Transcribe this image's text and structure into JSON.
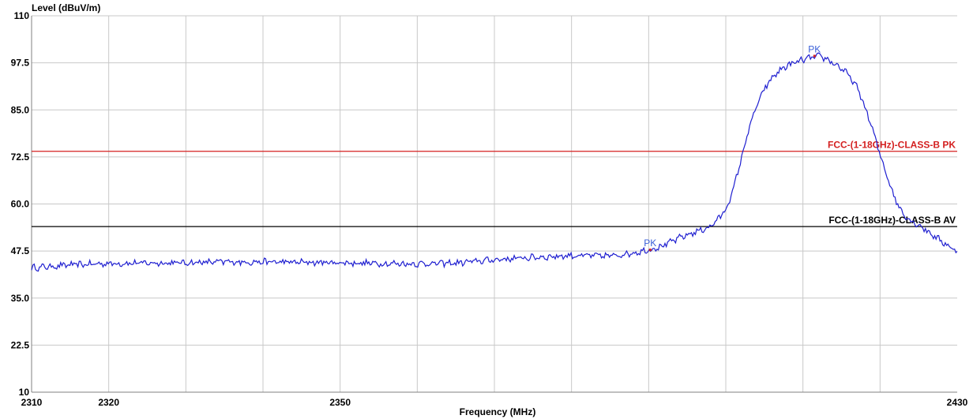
{
  "chart_data": {
    "type": "line",
    "ylabel": "Level (dBuV/m)",
    "xlabel": "Frequency (MHz)",
    "xlim": [
      2310,
      2430
    ],
    "ylim": [
      10,
      110
    ],
    "y_ticks": [
      "110",
      "97.5",
      "85.0",
      "72.5",
      "60.0",
      "47.5",
      "35.0",
      "22.5",
      "10"
    ],
    "x_ticks": [
      "2310",
      "2320",
      "2350",
      "2430"
    ],
    "grid": true,
    "series": [
      {
        "color": "#1f1fd0",
        "x": [
          2310,
          2315,
          2320,
          2325,
          2330,
          2335,
          2340,
          2345,
          2350,
          2355,
          2360,
          2365,
          2370,
          2375,
          2380,
          2385,
          2388,
          2390,
          2392,
          2394,
          2396,
          2398,
          2399,
          2400,
          2401,
          2402,
          2403,
          2404,
          2405,
          2406,
          2407,
          2408,
          2409,
          2410,
          2411,
          2412,
          2413,
          2414,
          2415,
          2416,
          2417,
          2418,
          2419,
          2420,
          2421,
          2422,
          2423,
          2424,
          2425,
          2426,
          2427,
          2428,
          2429,
          2430
        ],
        "y": [
          43.0,
          43.8,
          44.2,
          44.3,
          44.4,
          44.6,
          44.6,
          44.5,
          44.4,
          44.2,
          44.1,
          44.3,
          45.2,
          45.8,
          46.3,
          46.2,
          47.0,
          47.8,
          49.0,
          51.0,
          52.5,
          54.0,
          56.0,
          58.5,
          64.0,
          72.0,
          80.0,
          86.0,
          90.5,
          93.5,
          95.5,
          96.8,
          97.5,
          98.3,
          98.8,
          99.2,
          98.6,
          97.4,
          96.0,
          94.0,
          91.0,
          86.0,
          80.0,
          73.0,
          67.0,
          61.0,
          57.5,
          55.5,
          54.5,
          53.0,
          51.5,
          50.0,
          48.8,
          47.0
        ]
      }
    ],
    "limit_lines": [
      {
        "label": "FCC-(1-18GHz)-CLASS-B PK",
        "value": 74.0,
        "color": "#d42020"
      },
      {
        "label": "FCC-(1-18GHz)-CLASS-B AV",
        "value": 54.0,
        "color": "#000000"
      }
    ],
    "markers": [
      {
        "label": "PK",
        "x": 2390.2,
        "y": 47.5,
        "color": "#d42020"
      },
      {
        "label": "PK",
        "x": 2411.5,
        "y": 99.0,
        "color": "#d42020"
      }
    ]
  }
}
